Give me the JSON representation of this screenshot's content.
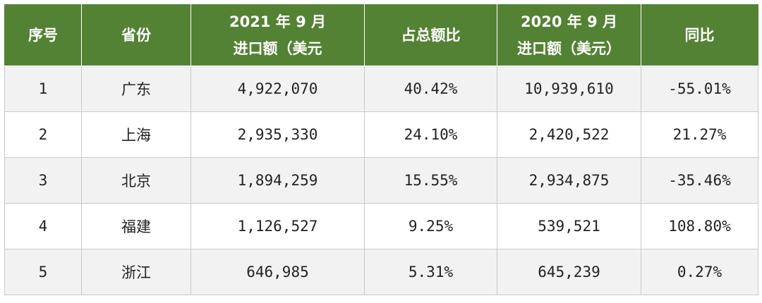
{
  "table": {
    "headers": [
      {
        "lines": [
          "序号"
        ]
      },
      {
        "lines": [
          "省份"
        ]
      },
      {
        "lines": [
          "2021 年 9 月",
          "进口额（美元"
        ]
      },
      {
        "lines": [
          "占总额比"
        ]
      },
      {
        "lines": [
          "2020 年 9 月",
          "进口额（美元）"
        ]
      },
      {
        "lines": [
          "同比"
        ]
      }
    ],
    "rows": [
      {
        "no": "1",
        "province": "广东",
        "import_2021": "4,922,070",
        "share": "40.42%",
        "import_2020": "10,939,610",
        "yoy": "-55.01%"
      },
      {
        "no": "2",
        "province": "上海",
        "import_2021": "2,935,330",
        "share": "24.10%",
        "import_2020": "2,420,522",
        "yoy": "21.27%"
      },
      {
        "no": "3",
        "province": "北京",
        "import_2021": "1,894,259",
        "share": "15.55%",
        "import_2020": "2,934,875",
        "yoy": "-35.46%"
      },
      {
        "no": "4",
        "province": "福建",
        "import_2021": "1,126,527",
        "share": "9.25%",
        "import_2020": "539,521",
        "yoy": "108.80%"
      },
      {
        "no": "5",
        "province": "浙江",
        "import_2021": "646,985",
        "share": "5.31%",
        "import_2020": "645,239",
        "yoy": "0.27%"
      }
    ]
  },
  "colors": {
    "header_bg": "#548235",
    "header_text": "#ffffff",
    "stripe": "#f2f2f2",
    "border": "#c9c9c9"
  }
}
